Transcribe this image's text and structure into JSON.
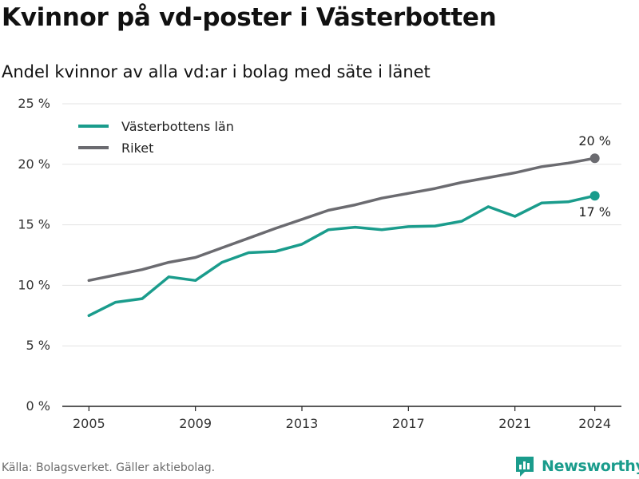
{
  "title": "Kvinnor på vd-poster i Västerbotten",
  "subtitle": "Andel kvinnor av alla vd:ar i bolag med säte i länet",
  "source": "Källa: Bolagsverket. Gäller aktiebolag.",
  "brand": {
    "name": "Newsworthy",
    "icon": "newsworthy-logo-icon",
    "color": "#1a9c8c"
  },
  "chart_data": {
    "type": "line",
    "x": [
      2005,
      2006,
      2007,
      2008,
      2009,
      2010,
      2011,
      2012,
      2013,
      2014,
      2015,
      2016,
      2017,
      2018,
      2019,
      2020,
      2021,
      2022,
      2023,
      2024
    ],
    "series": [
      {
        "name": "Västerbottens län",
        "color": "#1a9c8c",
        "values": [
          7.5,
          8.6,
          8.9,
          10.7,
          10.4,
          11.9,
          12.7,
          12.8,
          13.4,
          14.6,
          14.8,
          14.6,
          14.85,
          14.9,
          15.3,
          16.5,
          15.7,
          16.8,
          16.9,
          17.4
        ],
        "end_label": "17 %"
      },
      {
        "name": "Riket",
        "color": "#6b6b70",
        "values": [
          10.4,
          10.85,
          11.3,
          11.9,
          12.3,
          13.1,
          13.9,
          14.7,
          15.45,
          16.2,
          16.65,
          17.2,
          17.6,
          18.0,
          18.5,
          18.9,
          19.3,
          19.8,
          20.1,
          20.5
        ],
        "end_label": "20 %"
      }
    ],
    "ylim": [
      0,
      25
    ],
    "yticks": [
      0,
      5,
      10,
      15,
      20,
      25
    ],
    "ytick_labels": [
      "0 %",
      "5 %",
      "10 %",
      "15 %",
      "20 %",
      "25 %"
    ],
    "xticks": [
      2005,
      2009,
      2013,
      2017,
      2021,
      2024
    ],
    "xtick_labels": [
      "2005",
      "2009",
      "2013",
      "2017",
      "2021",
      "2024"
    ],
    "xlim": [
      2004,
      2025
    ],
    "grid": true,
    "legend_position": "top-left"
  }
}
